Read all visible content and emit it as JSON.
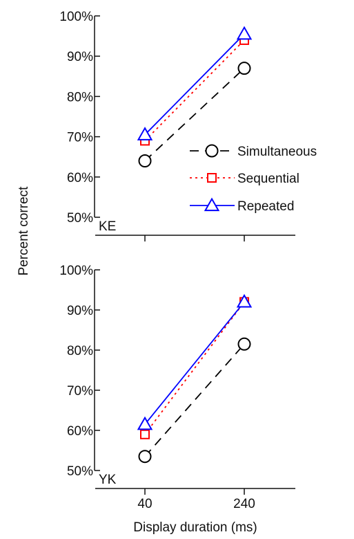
{
  "chart_data": [
    {
      "type": "line",
      "panel_label": "KE",
      "x": [
        40,
        240
      ],
      "ylim": [
        50,
        100
      ],
      "yticks": [
        "50%",
        "60%",
        "70%",
        "80%",
        "90%",
        "100%"
      ],
      "series": [
        {
          "name": "Simultaneous",
          "values": [
            64,
            87
          ],
          "color": "#000000",
          "marker": "circle",
          "line_style": "dashed"
        },
        {
          "name": "Sequential",
          "values": [
            69,
            94
          ],
          "color": "#ff0000",
          "marker": "square",
          "line_style": "dotted"
        },
        {
          "name": "Repeated",
          "values": [
            70.5,
            95.5
          ],
          "color": "#0000ff",
          "marker": "triangle",
          "line_style": "solid"
        }
      ]
    },
    {
      "type": "line",
      "panel_label": "YK",
      "x": [
        40,
        240
      ],
      "ylim": [
        50,
        100
      ],
      "yticks": [
        "50%",
        "60%",
        "70%",
        "80%",
        "90%",
        "100%"
      ],
      "series": [
        {
          "name": "Simultaneous",
          "values": [
            53.5,
            81.5
          ],
          "color": "#000000",
          "marker": "circle",
          "line_style": "dashed"
        },
        {
          "name": "Sequential",
          "values": [
            59,
            92
          ],
          "color": "#ff0000",
          "marker": "square",
          "line_style": "dotted"
        },
        {
          "name": "Repeated",
          "values": [
            61.5,
            92
          ],
          "color": "#0000ff",
          "marker": "triangle",
          "line_style": "solid"
        }
      ]
    }
  ],
  "ylabel": "Percent correct",
  "xlabel": "Display duration (ms)",
  "xticks": [
    "40",
    "240"
  ],
  "legend": {
    "placement": "top panel, right",
    "items": [
      "Simultaneous",
      "Sequential",
      "Repeated"
    ]
  }
}
